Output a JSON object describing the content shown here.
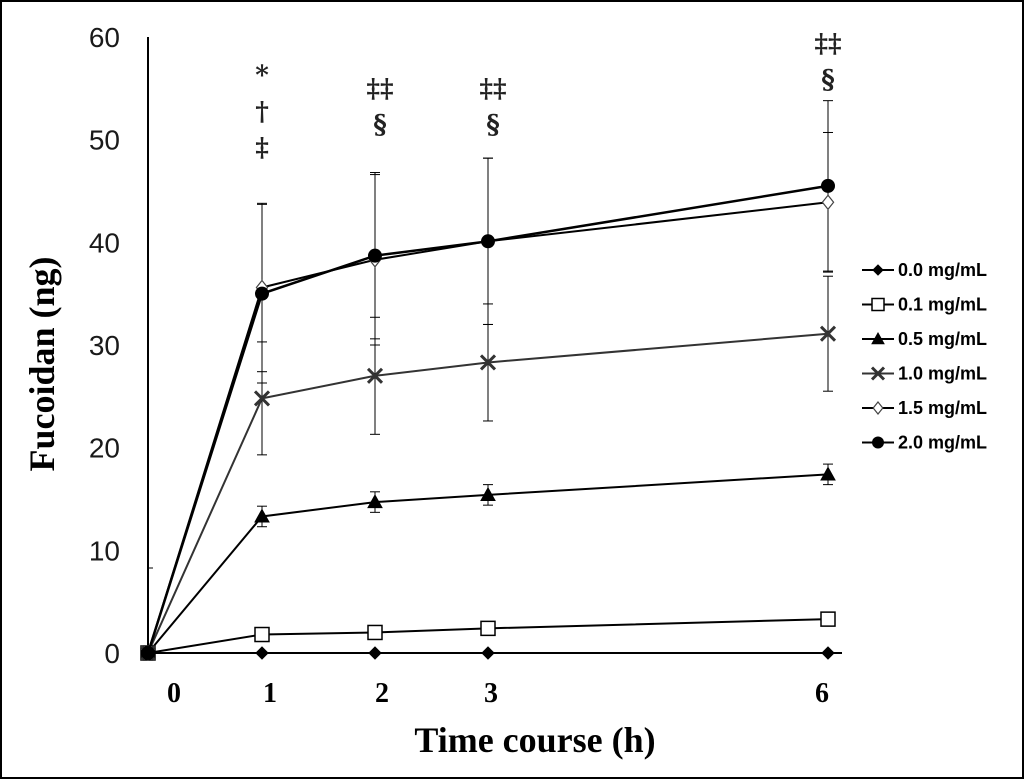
{
  "chart_data": {
    "type": "line",
    "xlabel": "Time course (h)",
    "ylabel": "Fucoidan (ng)",
    "x": [
      0,
      1,
      2,
      3,
      6
    ],
    "x_tick_labels": [
      "0",
      "1",
      "2",
      "3",
      "6"
    ],
    "ylim": [
      0,
      60
    ],
    "y_ticks": [
      0,
      10,
      20,
      30,
      40,
      50,
      60
    ],
    "grid": false,
    "legend_position": "right",
    "series": [
      {
        "name": "0.0 mg/mL",
        "marker": "diamond-filled",
        "color": "#000000",
        "values": [
          0,
          0,
          0,
          0,
          0
        ],
        "errors": [
          0,
          0,
          0,
          0,
          0
        ]
      },
      {
        "name": "0.1 mg/mL",
        "marker": "square-open",
        "color": "#000000",
        "values": [
          0,
          1.8,
          2.0,
          2.4,
          3.3
        ],
        "errors": [
          0,
          0,
          0,
          0,
          0
        ]
      },
      {
        "name": "0.5 mg/mL",
        "marker": "triangle-filled",
        "color": "#000000",
        "values": [
          0,
          13.3,
          14.7,
          15.4,
          17.4
        ],
        "errors": [
          0,
          1.0,
          1.0,
          1.0,
          1.0
        ]
      },
      {
        "name": "1.0 mg/mL",
        "marker": "x",
        "color": "#333333",
        "values": [
          0,
          24.8,
          27.0,
          28.3,
          31.1
        ],
        "errors": [
          0,
          5.5,
          5.7,
          5.7,
          5.6
        ]
      },
      {
        "name": "1.5 mg/mL",
        "marker": "diamond-open",
        "color": "#000000",
        "values": [
          0,
          35.6,
          38.3,
          40.1,
          43.9
        ],
        "errors": [
          0,
          8.2,
          8.3,
          8.1,
          6.8
        ]
      },
      {
        "name": "2.0 mg/mL",
        "marker": "circle-filled",
        "color": "#000000",
        "values": [
          0,
          35.0,
          38.7,
          40.1,
          45.5
        ],
        "errors": [
          0,
          8.7,
          8.1,
          8.1,
          8.3
        ]
      }
    ],
    "annotations": [
      {
        "x": 1,
        "lines": [
          "*",
          "†",
          "‡"
        ]
      },
      {
        "x": 2,
        "lines": [
          "‡‡",
          "§"
        ]
      },
      {
        "x": 3,
        "lines": [
          "‡‡",
          "§"
        ]
      },
      {
        "x": 6,
        "lines": [
          "‡‡",
          "§"
        ]
      }
    ]
  }
}
